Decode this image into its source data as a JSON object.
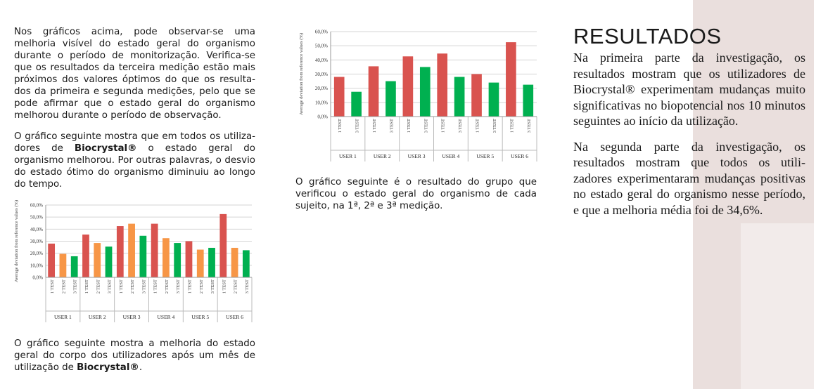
{
  "left": {
    "p1": "Nos gráficos acima, pode observar-se uma melhoria visível do estado geral do organismo durante o período de monitorização. Verifica-se que os resultados da terceira medição estão mais próximos dos valores óptimos do que os resulta- dos da primeira e segunda medições, pelo que se pode afirmar que o estado geral do organismo melhorou durante o período de observação.",
    "p2_before": "O gráfico seguinte mostra que em todos os utiliza- dores de ",
    "p2_brand": "Biocrystal®",
    "p2_after": " o estado geral do organismo melhorou. Por outras palavras, o desvio do estado ótimo do organismo diminuiu ao longo do tempo.",
    "caption_before": "O gráfico seguinte mostra a melhoria do estado geral do corpo dos utilizadores após um mês de utilização de ",
    "caption_brand": "Biocrystal®",
    "caption_after": "."
  },
  "middle": {
    "caption": "O gráfico seguinte é o resultado do grupo que verificou o estado geral do organismo de cada sujeito, na 1ª, 2ª e 3ª medição."
  },
  "right": {
    "title": "RESULTADOS",
    "p1": "Na primeira parte da investigação, os resultados mostram que os utilizadores de Biocrystal® experimentam mudanças muito significativas no biopotencial nos 10 minutos seguintes ao início da utilização.",
    "p2": "Na segunda parte da investigação, os resultados mostram que todos os utili- zadores experimentaram mudanças positivas no estado geral do organismo nesse período, e que a melhoria média foi de 34,6%."
  },
  "chart_data": [
    {
      "type": "bar",
      "ylabel": "Average deviation from reference values (%)",
      "ylim": [
        0,
        60
      ],
      "yticks": [
        "0,0%",
        "10,0%",
        "20,0%",
        "30,0%",
        "40,0%",
        "50,0%",
        "60,0%"
      ],
      "grid": true,
      "groups": [
        "USER 1",
        "USER 2",
        "USER 3",
        "USER 4",
        "USER 5",
        "USER 6"
      ],
      "bar_labels": [
        "1 TEST",
        "3 TEST"
      ],
      "colors": [
        "#d9534f",
        "#00b050"
      ],
      "values": [
        [
          28,
          17.5
        ],
        [
          35.5,
          25
        ],
        [
          42.5,
          35
        ],
        [
          44.5,
          28
        ],
        [
          30,
          24
        ],
        [
          52.5,
          22.5
        ]
      ]
    },
    {
      "type": "bar",
      "ylabel": "Average deviation from reference values (%)",
      "ylim": [
        0,
        60
      ],
      "yticks": [
        "0,0%",
        "10,0%",
        "20,0%",
        "30,0%",
        "40,0%",
        "50,0%",
        "60,0%"
      ],
      "grid": true,
      "groups": [
        "USER 1",
        "USER 2",
        "USER 3",
        "USER 4",
        "USER 5",
        "USER 6"
      ],
      "bar_labels": [
        "1 TEST",
        "2 TEST",
        "3 TEST"
      ],
      "colors": [
        "#d9534f",
        "#f79646",
        "#00b050"
      ],
      "values": [
        [
          28,
          19.5,
          17.5
        ],
        [
          35.5,
          28.5,
          25.5
        ],
        [
          42.5,
          44.5,
          34.5
        ],
        [
          44.5,
          32.5,
          28.5
        ],
        [
          30,
          23,
          24.5
        ],
        [
          52.5,
          24.5,
          22.5
        ]
      ]
    }
  ]
}
